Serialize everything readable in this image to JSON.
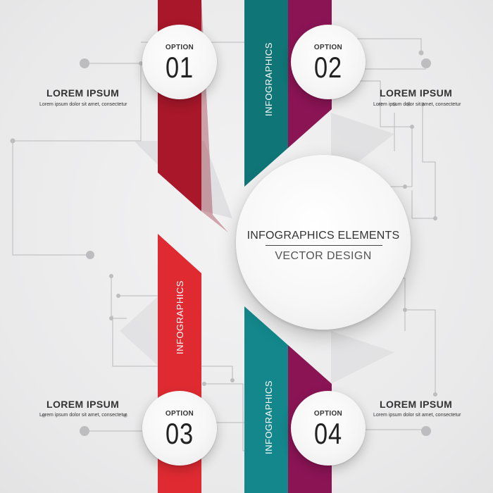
{
  "colors": {
    "red_dark": "#a8172a",
    "red": "#e02a32",
    "teal": "#0f7576",
    "teal_light": "#13878b",
    "magenta": "#8b1455",
    "background": "#ececed"
  },
  "center": {
    "title": "INFOGRAPHICS ELEMENTS",
    "subtitle": "VECTOR DESIGN"
  },
  "ribbon_text": "INFOGRAPHICS",
  "options": [
    {
      "label": "OPTION",
      "number": "01",
      "title": "LOREM IPSUM",
      "desc": "Lorem ipsum dolor sit amet, consectetur"
    },
    {
      "label": "OPTION",
      "number": "02",
      "title": "LOREM IPSUM",
      "desc": "Lorem ipsum dolor sit amet, consectetur"
    },
    {
      "label": "OPTION",
      "number": "03",
      "title": "LOREM IPSUM",
      "desc": "Lorem ipsum dolor sit amet, consectetur"
    },
    {
      "label": "OPTION",
      "number": "04",
      "title": "LOREM IPSUM",
      "desc": "Lorem ipsum dolor sit amet, consectetur"
    }
  ]
}
